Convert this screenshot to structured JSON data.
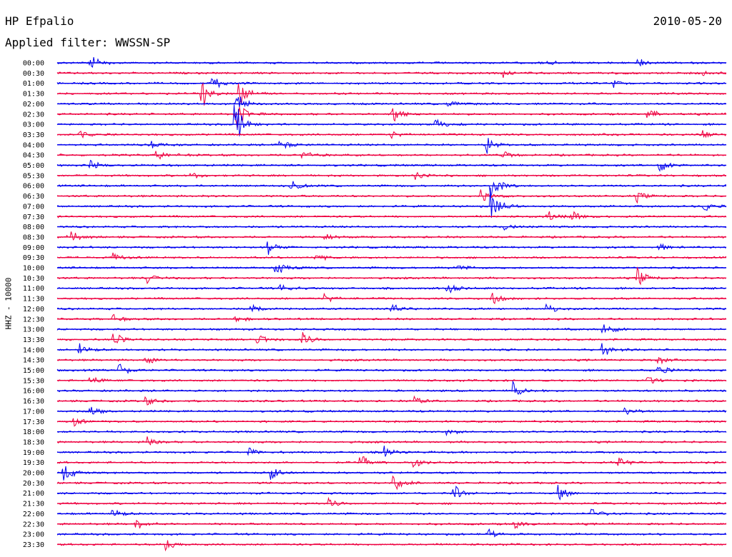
{
  "header": {
    "station": "HP Efpalio",
    "filter": "Applied filter: WWSSN-SP",
    "date": "2010-05-20"
  },
  "channel_label": "HHZ - 10000",
  "colors": {
    "trace_a": "#0000ee",
    "trace_b": "#ee0040",
    "background": "#ffffff"
  },
  "chart_data": {
    "type": "line",
    "title": "HP Efpalio",
    "subtitle": "Applied filter: WWSSN-SP",
    "date": "2010-05-20",
    "ylabel": "HHZ - 10000",
    "rows": [
      "00:00",
      "00:30",
      "01:00",
      "01:30",
      "02:00",
      "02:30",
      "03:00",
      "03:30",
      "04:00",
      "04:30",
      "05:00",
      "05:30",
      "06:00",
      "06:30",
      "07:00",
      "07:30",
      "08:00",
      "08:30",
      "09:00",
      "09:30",
      "10:00",
      "10:30",
      "11:00",
      "11:30",
      "12:00",
      "12:30",
      "13:00",
      "13:30",
      "14:00",
      "14:30",
      "15:00",
      "15:30",
      "16:00",
      "16:30",
      "17:00",
      "17:30",
      "18:00",
      "18:30",
      "19:00",
      "19:30",
      "20:00",
      "20:30",
      "21:00",
      "21:30",
      "22:00",
      "22:30",
      "23:00",
      "23:30"
    ],
    "row_colors": [
      "blue",
      "red"
    ],
    "minutes_per_row": 30,
    "events": [
      {
        "row": 0,
        "minute": 1.5,
        "amp": 3
      },
      {
        "row": 0,
        "minute": 22,
        "amp": 1.2
      },
      {
        "row": 0,
        "minute": 26,
        "amp": 2
      },
      {
        "row": 1,
        "minute": 20,
        "amp": 1.5
      },
      {
        "row": 1,
        "minute": 29,
        "amp": 0.8
      },
      {
        "row": 2,
        "minute": 7,
        "amp": 3
      },
      {
        "row": 2,
        "minute": 25,
        "amp": 1.5
      },
      {
        "row": 3,
        "minute": 6.5,
        "amp": 5
      },
      {
        "row": 3,
        "minute": 8.2,
        "amp": 6
      },
      {
        "row": 4,
        "minute": 8,
        "amp": 5
      },
      {
        "row": 4,
        "minute": 17.5,
        "amp": 1.5
      },
      {
        "row": 5,
        "minute": 8,
        "amp": 7
      },
      {
        "row": 5,
        "minute": 15,
        "amp": 5
      },
      {
        "row": 5,
        "minute": 26.5,
        "amp": 2
      },
      {
        "row": 6,
        "minute": 8,
        "amp": 8
      },
      {
        "row": 6,
        "minute": 17,
        "amp": 2.5
      },
      {
        "row": 7,
        "minute": 1,
        "amp": 1.5
      },
      {
        "row": 7,
        "minute": 15,
        "amp": 1.5
      },
      {
        "row": 7,
        "minute": 29,
        "amp": 1.5
      },
      {
        "row": 8,
        "minute": 4.3,
        "amp": 1.5
      },
      {
        "row": 8,
        "minute": 10,
        "amp": 2.5
      },
      {
        "row": 8,
        "minute": 19.3,
        "amp": 3
      },
      {
        "row": 9,
        "minute": 4.5,
        "amp": 2
      },
      {
        "row": 9,
        "minute": 11,
        "amp": 2
      },
      {
        "row": 9,
        "minute": 20,
        "amp": 1.5
      },
      {
        "row": 10,
        "minute": 1.5,
        "amp": 2
      },
      {
        "row": 10,
        "minute": 27,
        "amp": 3
      },
      {
        "row": 11,
        "minute": 16,
        "amp": 2
      },
      {
        "row": 11,
        "minute": 6,
        "amp": 1.5
      },
      {
        "row": 12,
        "minute": 10.5,
        "amp": 2.5
      },
      {
        "row": 12,
        "minute": 19.5,
        "amp": 5
      },
      {
        "row": 13,
        "minute": 19,
        "amp": 3
      },
      {
        "row": 13,
        "minute": 26,
        "amp": 2
      },
      {
        "row": 14,
        "minute": 19.5,
        "amp": 7
      },
      {
        "row": 14,
        "minute": 29,
        "amp": 2
      },
      {
        "row": 15,
        "minute": 23,
        "amp": 3
      },
      {
        "row": 15,
        "minute": 22,
        "amp": 2
      },
      {
        "row": 16,
        "minute": 20,
        "amp": 1.5
      },
      {
        "row": 17,
        "minute": 0.5,
        "amp": 3
      },
      {
        "row": 17,
        "minute": 12,
        "amp": 1.5
      },
      {
        "row": 18,
        "minute": 9.5,
        "amp": 2.5
      },
      {
        "row": 18,
        "minute": 27,
        "amp": 1.5
      },
      {
        "row": 19,
        "minute": 2.5,
        "amp": 2
      },
      {
        "row": 19,
        "minute": 11.6,
        "amp": 1.5
      },
      {
        "row": 20,
        "minute": 9.8,
        "amp": 3
      },
      {
        "row": 20,
        "minute": 18,
        "amp": 1.5
      },
      {
        "row": 21,
        "minute": 4,
        "amp": 2
      },
      {
        "row": 21,
        "minute": 26,
        "amp": 4
      },
      {
        "row": 22,
        "minute": 10,
        "amp": 2
      },
      {
        "row": 22,
        "minute": 17.5,
        "amp": 2
      },
      {
        "row": 23,
        "minute": 12,
        "amp": 2
      },
      {
        "row": 23,
        "minute": 19.5,
        "amp": 2.5
      },
      {
        "row": 24,
        "minute": 8.7,
        "amp": 3
      },
      {
        "row": 24,
        "minute": 15,
        "amp": 2.5
      },
      {
        "row": 24,
        "minute": 22,
        "amp": 2
      },
      {
        "row": 25,
        "minute": 2.5,
        "amp": 1.5
      },
      {
        "row": 25,
        "minute": 8,
        "amp": 1.5
      },
      {
        "row": 26,
        "minute": 24.5,
        "amp": 4
      },
      {
        "row": 27,
        "minute": 2.5,
        "amp": 3
      },
      {
        "row": 27,
        "minute": 9,
        "amp": 3
      },
      {
        "row": 27,
        "minute": 11,
        "amp": 3
      },
      {
        "row": 28,
        "minute": 1,
        "amp": 2.5
      },
      {
        "row": 28,
        "minute": 24.5,
        "amp": 3
      },
      {
        "row": 29,
        "minute": 4,
        "amp": 2
      },
      {
        "row": 29,
        "minute": 27,
        "amp": 2
      },
      {
        "row": 30,
        "minute": 2.8,
        "amp": 3
      },
      {
        "row": 30,
        "minute": 27,
        "amp": 2
      },
      {
        "row": 31,
        "minute": 1.5,
        "amp": 2.5
      },
      {
        "row": 31,
        "minute": 26.5,
        "amp": 2
      },
      {
        "row": 32,
        "minute": 20.5,
        "amp": 3
      },
      {
        "row": 33,
        "minute": 4,
        "amp": 2
      },
      {
        "row": 33,
        "minute": 16,
        "amp": 2
      },
      {
        "row": 34,
        "minute": 1.5,
        "amp": 2.5
      },
      {
        "row": 34,
        "minute": 25.5,
        "amp": 2
      },
      {
        "row": 35,
        "minute": 0.8,
        "amp": 1.5
      },
      {
        "row": 36,
        "minute": 17.5,
        "amp": 1.5
      },
      {
        "row": 37,
        "minute": 4,
        "amp": 2
      },
      {
        "row": 38,
        "minute": 14.7,
        "amp": 2.5
      },
      {
        "row": 38,
        "minute": 8.6,
        "amp": 1.5
      },
      {
        "row": 39,
        "minute": 13.6,
        "amp": 4
      },
      {
        "row": 39,
        "minute": 16,
        "amp": 2.5
      },
      {
        "row": 39,
        "minute": 25.2,
        "amp": 2.5
      },
      {
        "row": 40,
        "minute": 0.3,
        "amp": 4
      },
      {
        "row": 40,
        "minute": 9.6,
        "amp": 3
      },
      {
        "row": 41,
        "minute": 15.1,
        "amp": 4
      },
      {
        "row": 42,
        "minute": 17.8,
        "amp": 3
      },
      {
        "row": 42,
        "minute": 22.5,
        "amp": 3
      },
      {
        "row": 43,
        "minute": 12.2,
        "amp": 2
      },
      {
        "row": 44,
        "minute": 2.5,
        "amp": 2
      },
      {
        "row": 44,
        "minute": 24,
        "amp": 2
      },
      {
        "row": 45,
        "minute": 3.5,
        "amp": 2.5
      },
      {
        "row": 45,
        "minute": 20.5,
        "amp": 2
      },
      {
        "row": 46,
        "minute": 19.4,
        "amp": 1.5
      },
      {
        "row": 47,
        "minute": 4.9,
        "amp": 2.5
      }
    ],
    "grid": false,
    "legend": "none"
  }
}
